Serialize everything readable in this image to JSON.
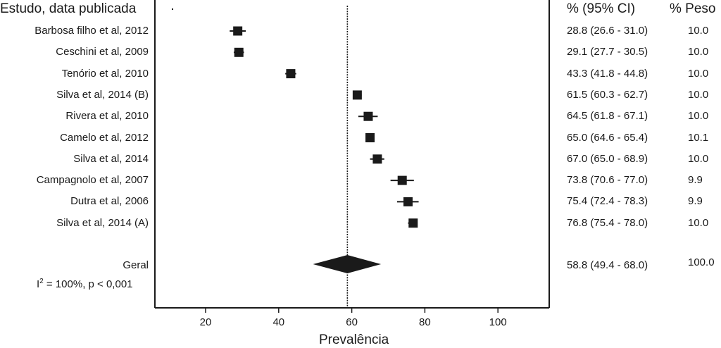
{
  "chart_data": {
    "type": "forest",
    "header": {
      "study": "Estudo, data publicada",
      "ci": "% (95% CI)",
      "weight": "% Peso"
    },
    "studies": [
      {
        "label": "Barbosa filho et al, 2012",
        "est": 28.8,
        "lo": 26.6,
        "hi": 31.0,
        "ci_text": "28.8 (26.6 - 31.0)",
        "weight": "10.0"
      },
      {
        "label": "Ceschini et al, 2009",
        "est": 29.1,
        "lo": 27.7,
        "hi": 30.5,
        "ci_text": "29.1 (27.7 - 30.5)",
        "weight": "10.0"
      },
      {
        "label": "Tenório et al, 2010",
        "est": 43.3,
        "lo": 41.8,
        "hi": 44.8,
        "ci_text": "43.3 (41.8 - 44.8)",
        "weight": "10.0"
      },
      {
        "label": "Silva et al, 2014 (B)",
        "est": 61.5,
        "lo": 60.3,
        "hi": 62.7,
        "ci_text": "61.5 (60.3 - 62.7)",
        "weight": "10.0"
      },
      {
        "label": "Rivera et al, 2010",
        "est": 64.5,
        "lo": 61.8,
        "hi": 67.1,
        "ci_text": "64.5 (61.8 - 67.1)",
        "weight": "10.0"
      },
      {
        "label": "Camelo et al, 2012",
        "est": 65.0,
        "lo": 64.6,
        "hi": 65.4,
        "ci_text": "65.0 (64.6 - 65.4)",
        "weight": "10.1"
      },
      {
        "label": "Silva et al, 2014",
        "est": 67.0,
        "lo": 65.0,
        "hi": 68.9,
        "ci_text": "67.0 (65.0 - 68.9)",
        "weight": "10.0"
      },
      {
        "label": "Campagnolo et al, 2007",
        "est": 73.8,
        "lo": 70.6,
        "hi": 77.0,
        "ci_text": "73.8 (70.6 - 77.0)",
        "weight": "9.9"
      },
      {
        "label": "Dutra et al, 2006",
        "est": 75.4,
        "lo": 72.4,
        "hi": 78.3,
        "ci_text": "75.4 (72.4 - 78.3)",
        "weight": "9.9"
      },
      {
        "label": "Silva et al, 2014 (A)",
        "est": 76.8,
        "lo": 75.4,
        "hi": 78.0,
        "ci_text": "76.8 (75.4 - 78.0)",
        "weight": "10.0"
      }
    ],
    "overall": {
      "label": "Geral",
      "est": 58.8,
      "lo": 49.4,
      "hi": 68.0,
      "ci_text": "58.8 (49.4 - 68.0)",
      "weight": "100.0"
    },
    "heterogeneity": {
      "symbol": "I",
      "exponent": "2",
      "text": " = 100%, p < 0,001"
    },
    "xlabel": "Prevalência",
    "xticks": [
      20,
      40,
      60,
      80,
      100
    ],
    "xlim": [
      5,
      110
    ],
    "colors": {
      "ink": "#1a1a1a"
    }
  }
}
